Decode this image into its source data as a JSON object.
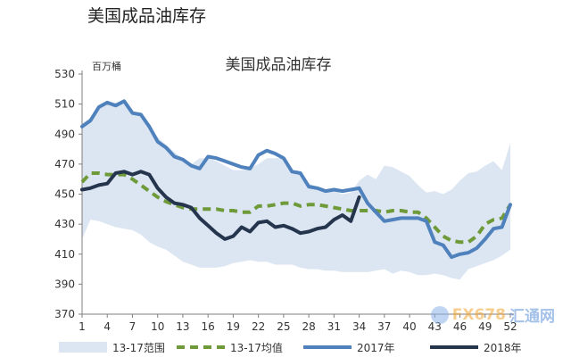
{
  "header": {
    "title": "美国成品油库存"
  },
  "watermark": {
    "text_fx": "FX678",
    "text_cn": "汇通网",
    "brand_color": "#f2a531"
  },
  "colors": {
    "band": "#dce6f2",
    "avg": "#6f9a3a",
    "y2017": "#4f81bd",
    "y2018": "#26354e"
  },
  "chart_data": {
    "type": "line",
    "title": "美国成品油库存",
    "unit_label": "百万桶",
    "xlabel": "",
    "ylabel": "",
    "xlim": [
      1,
      52
    ],
    "ylim": [
      370,
      530
    ],
    "x_ticks": [
      1,
      4,
      7,
      10,
      13,
      16,
      19,
      22,
      25,
      28,
      31,
      34,
      37,
      40,
      43,
      46,
      49,
      52
    ],
    "y_ticks": [
      370,
      390,
      410,
      430,
      450,
      470,
      490,
      510,
      530
    ],
    "grid": false,
    "legend_position": "bottom",
    "band": {
      "name": "13-17范围",
      "x": [
        1,
        2,
        3,
        4,
        5,
        6,
        7,
        8,
        9,
        10,
        11,
        12,
        13,
        14,
        15,
        16,
        17,
        18,
        19,
        20,
        21,
        22,
        23,
        24,
        25,
        26,
        27,
        28,
        29,
        30,
        31,
        32,
        33,
        34,
        35,
        36,
        37,
        38,
        39,
        40,
        41,
        42,
        43,
        44,
        45,
        46,
        47,
        48,
        49,
        50,
        51,
        52
      ],
      "upper": [
        497,
        501,
        509,
        511,
        511,
        511,
        504,
        502,
        496,
        488,
        483,
        478,
        474,
        470,
        474,
        474,
        472,
        469,
        466,
        466,
        467,
        470,
        474,
        474,
        474,
        466,
        464,
        457,
        455,
        452,
        452,
        450,
        451,
        459,
        463,
        460,
        469,
        468,
        465,
        462,
        456,
        451,
        452,
        450,
        453,
        459,
        464,
        465,
        469,
        472,
        466,
        484
      ],
      "lower": [
        420,
        433,
        432,
        430,
        428,
        427,
        426,
        423,
        418,
        415,
        413,
        409,
        405,
        403,
        401,
        401,
        401,
        402,
        404,
        405,
        406,
        405,
        405,
        403,
        403,
        403,
        401,
        400,
        400,
        399,
        399,
        398,
        398,
        398,
        398,
        399,
        400,
        397,
        399,
        398,
        396,
        396,
        397,
        396,
        394,
        393,
        400,
        402,
        404,
        406,
        409,
        413
      ]
    },
    "series": [
      {
        "name": "13-17均值",
        "style": "dashed",
        "color": "#6f9a3a",
        "x": [
          1,
          2,
          3,
          4,
          5,
          6,
          7,
          8,
          9,
          10,
          11,
          12,
          13,
          14,
          15,
          16,
          17,
          18,
          19,
          20,
          21,
          22,
          23,
          24,
          25,
          26,
          27,
          28,
          29,
          30,
          31,
          32,
          33,
          34,
          35,
          36,
          37,
          38,
          39,
          40,
          41,
          42,
          43,
          44,
          45,
          46,
          47,
          48,
          49,
          50,
          51,
          52
        ],
        "y": [
          458,
          464,
          464,
          463,
          463,
          463,
          460,
          456,
          452,
          448,
          445,
          443,
          441,
          440,
          440,
          440,
          440,
          439,
          439,
          438,
          438,
          442,
          442,
          443,
          444,
          444,
          442,
          443,
          443,
          442,
          441,
          440,
          439,
          439,
          439,
          439,
          438,
          439,
          439,
          438,
          438,
          434,
          428,
          422,
          419,
          418,
          418,
          422,
          430,
          433,
          434,
          443
        ]
      },
      {
        "name": "2017年",
        "style": "solid",
        "color": "#4f81bd",
        "x": [
          1,
          2,
          3,
          4,
          5,
          6,
          7,
          8,
          9,
          10,
          11,
          12,
          13,
          14,
          15,
          16,
          17,
          18,
          19,
          20,
          21,
          22,
          23,
          24,
          25,
          26,
          27,
          28,
          29,
          30,
          31,
          32,
          33,
          34,
          35,
          36,
          37,
          38,
          39,
          40,
          41,
          42,
          43,
          44,
          45,
          46,
          47,
          48,
          49,
          50,
          51,
          52
        ],
        "y": [
          495,
          499,
          508,
          511,
          509,
          512,
          504,
          503,
          495,
          485,
          481,
          475,
          473,
          469,
          467,
          475,
          474,
          472,
          470,
          468,
          467,
          476,
          479,
          477,
          474,
          465,
          464,
          455,
          454,
          452,
          453,
          452,
          453,
          454,
          444,
          438,
          432,
          433,
          434,
          434,
          434,
          432,
          418,
          416,
          408,
          410,
          411,
          414,
          420,
          427,
          428,
          443
        ]
      },
      {
        "name": "2018年",
        "style": "solid",
        "color": "#26354e",
        "x": [
          1,
          2,
          3,
          4,
          5,
          6,
          7,
          8,
          9,
          10,
          11,
          12,
          13,
          14,
          15,
          16,
          17,
          18,
          19,
          20,
          21,
          22,
          23,
          24,
          25,
          26,
          27,
          28,
          29,
          30,
          31,
          32,
          33,
          34
        ],
        "y": [
          453,
          454,
          456,
          457,
          464,
          465,
          463,
          465,
          463,
          454,
          448,
          444,
          443,
          441,
          434,
          429,
          424,
          420,
          422,
          428,
          425,
          431,
          432,
          428,
          429,
          427,
          424,
          425,
          427,
          428,
          433,
          436,
          432,
          448
        ]
      }
    ]
  }
}
